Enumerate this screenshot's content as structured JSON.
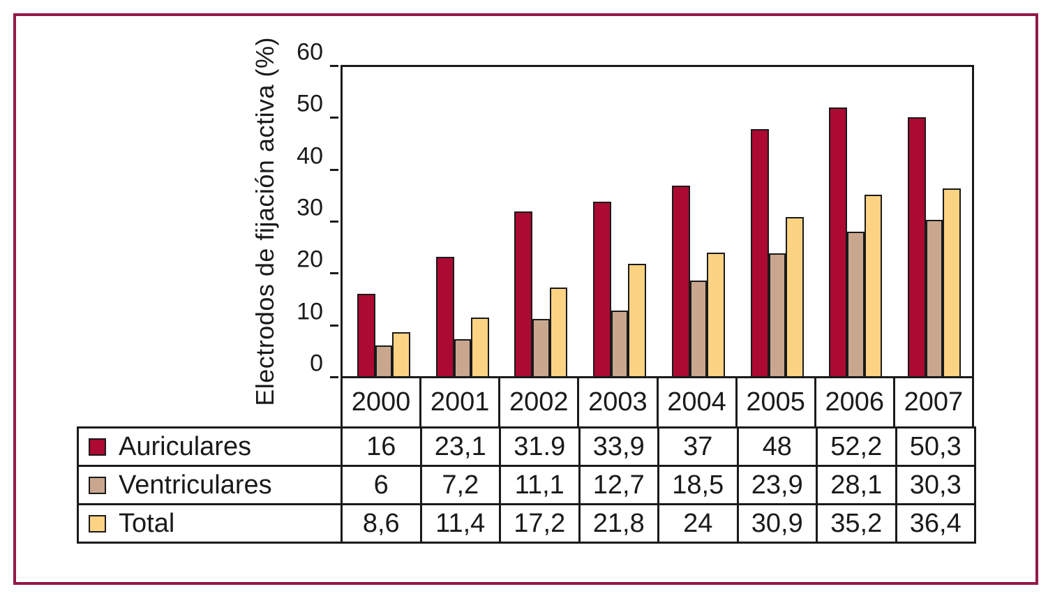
{
  "frame": {
    "border_color": "#941947"
  },
  "chart_data": {
    "type": "bar",
    "title": "",
    "xlabel": "",
    "ylabel": "Electrodos de fijación activa (%)",
    "ylim": [
      0,
      60
    ],
    "yticks": [
      0,
      10,
      20,
      30,
      40,
      50,
      60
    ],
    "grid": false,
    "legend_position": "table-left-column",
    "categories": [
      "2000",
      "2001",
      "2002",
      "2003",
      "2004",
      "2005",
      "2006",
      "2007"
    ],
    "series": [
      {
        "name": "Auriculares",
        "color": "#ac0a32",
        "values": [
          16,
          23.1,
          31.9,
          33.9,
          37,
          48,
          52.2,
          50.3
        ],
        "labels": [
          "16",
          "23,1",
          "31.9",
          "33,9",
          "37",
          "48",
          "52,2",
          "50,3"
        ]
      },
      {
        "name": "Ventriculares",
        "color": "#c9a78e",
        "values": [
          6,
          7.2,
          11.1,
          12.7,
          18.5,
          23.9,
          28.1,
          30.3
        ],
        "labels": [
          "6",
          "7,2",
          "11,1",
          "12,7",
          "18,5",
          "23,9",
          "28,1",
          "30,3"
        ]
      },
      {
        "name": "Total",
        "color": "#fbd382",
        "values": [
          8.6,
          11.4,
          17.2,
          21.8,
          24,
          30.9,
          35.2,
          36.4
        ],
        "labels": [
          "8,6",
          "11,4",
          "17,2",
          "21,8",
          "24",
          "30,9",
          "35,2",
          "36,4"
        ]
      }
    ]
  }
}
